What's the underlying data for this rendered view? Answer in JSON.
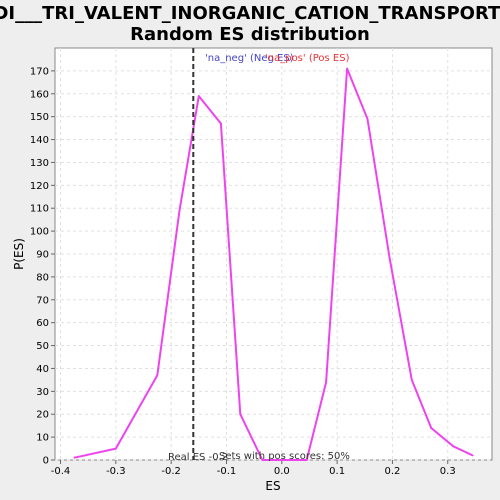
{
  "chart_data": {
    "type": "line",
    "title_line1": "DI___TRI_VALENT_INORGANIC_CATION_TRANSPORT:",
    "title_line2": "Random ES distribution",
    "xlabel": "ES",
    "ylabel": "P(ES)",
    "xlim": [
      -0.41,
      0.38
    ],
    "ylim": [
      0,
      180
    ],
    "x_ticks": [
      -0.4,
      -0.3,
      -0.2,
      -0.1,
      0.0,
      0.1,
      0.2,
      0.3
    ],
    "x_tick_labels": [
      "-0.4",
      "-0.3",
      "-0.2",
      "-0.1",
      "0.0",
      "0.1",
      "0.2",
      "0.3"
    ],
    "y_ticks": [
      0,
      10,
      20,
      30,
      40,
      50,
      60,
      70,
      80,
      90,
      100,
      110,
      120,
      130,
      140,
      150,
      160,
      170
    ],
    "grid": true,
    "series": [
      {
        "color": "#ee44ee",
        "x": [
          -0.375,
          -0.3,
          -0.225,
          -0.185,
          -0.15,
          -0.11,
          -0.075,
          -0.035,
          0.005,
          0.045,
          0.08,
          0.118,
          0.155,
          0.195,
          0.235,
          0.27,
          0.31,
          0.345
        ],
        "y": [
          1,
          5,
          37,
          109,
          159,
          147,
          20,
          0,
          0,
          0,
          34,
          171,
          149,
          88,
          35,
          14,
          6,
          2
        ]
      }
    ],
    "real_es": -0.16,
    "legend": {
      "neg_label": "'na_neg' (Neg ES)",
      "pos_label": "'na_pos' (Pos ES)",
      "neg_color": "#4444cc",
      "pos_color": "#ee3333"
    },
    "annotations": {
      "real_es_label": "Real ES -0.2",
      "pos_scores_label": "Sets with pos scores: 50%"
    }
  }
}
